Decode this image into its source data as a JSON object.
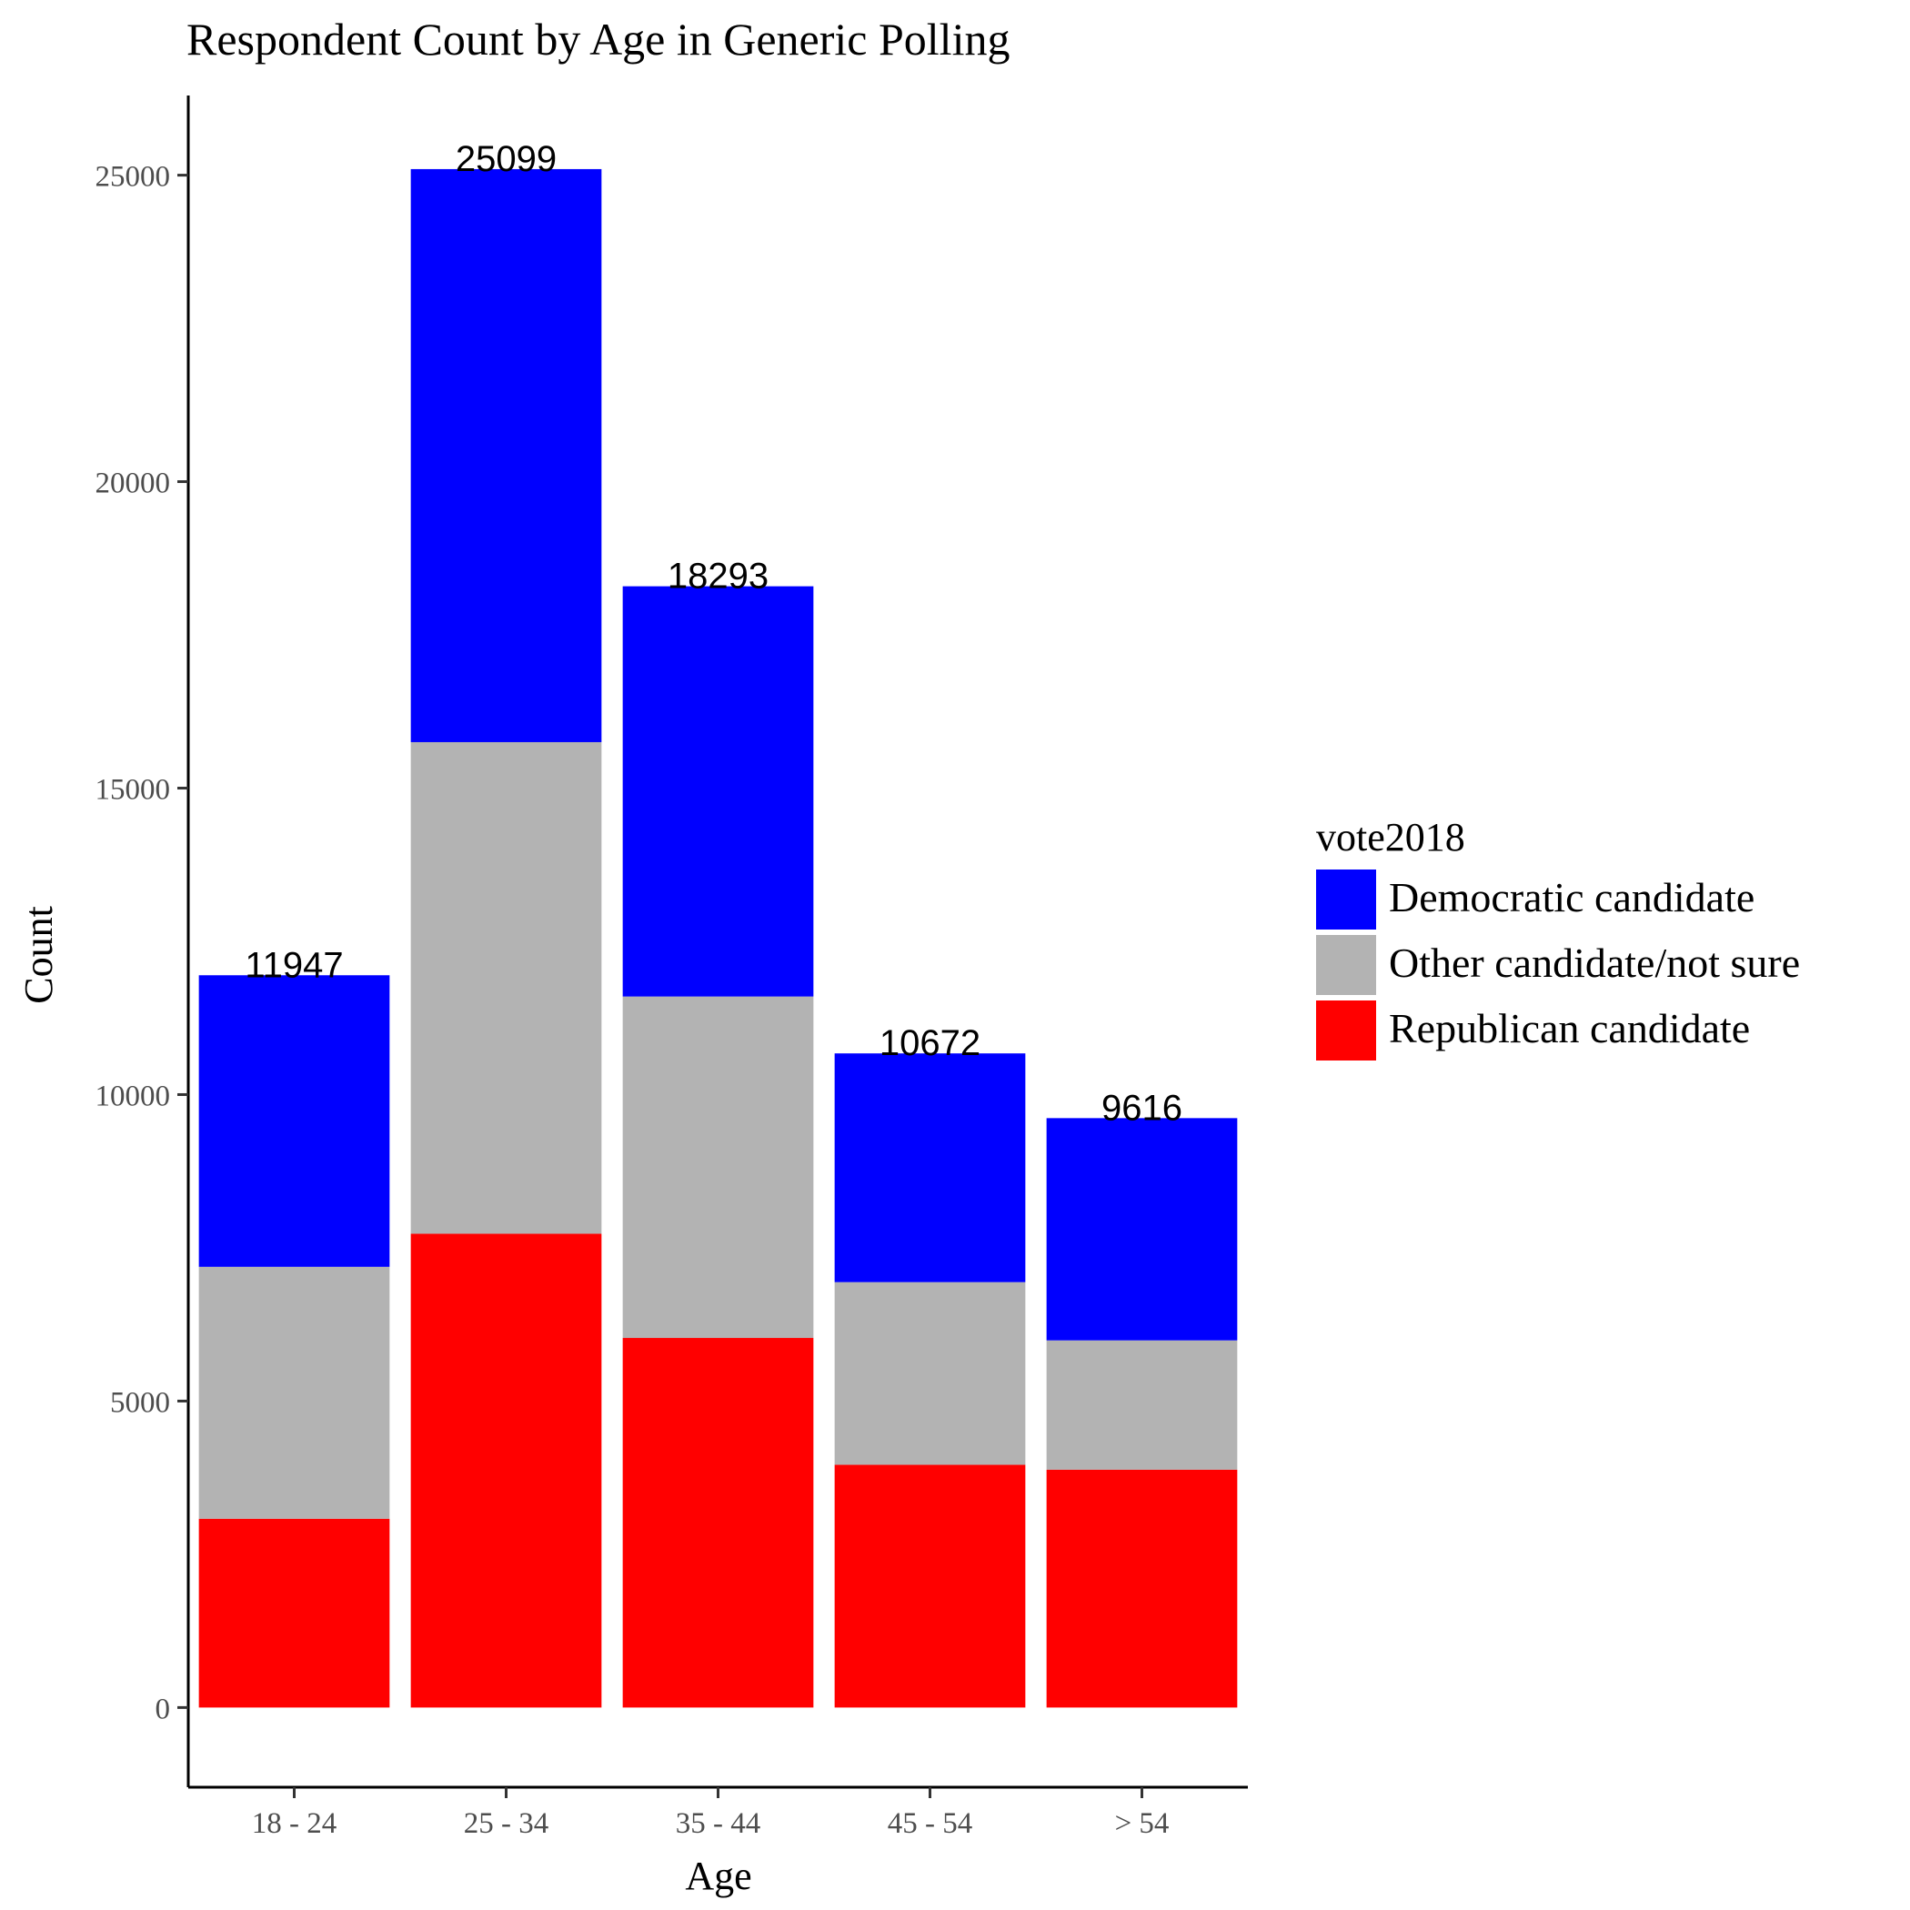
{
  "chart_data": {
    "type": "bar",
    "stacked": true,
    "title": "Respondent Count by Age in Generic Polling",
    "xlabel": "Age",
    "ylabel": "Count",
    "categories": [
      "18 - 24",
      "25 - 34",
      "35 - 44",
      "45 - 54",
      "> 54"
    ],
    "ylim": [
      -1300,
      26300
    ],
    "yticks": [
      0,
      5000,
      10000,
      15000,
      20000,
      25000
    ],
    "totals": [
      11947,
      25099,
      18293,
      10672,
      9616
    ],
    "legend": {
      "title": "vote2018",
      "position": "right"
    },
    "grid": false,
    "series": [
      {
        "name": "Republican candidate",
        "color": "#ff0000",
        "values": [
          3080,
          7730,
          6030,
          3960,
          3880
        ]
      },
      {
        "name": "Other candidate/not sure",
        "color": "#b3b3b3",
        "values": [
          4110,
          8020,
          5570,
          2980,
          2110
        ]
      },
      {
        "name": "Democratic candidate",
        "color": "#0000ff",
        "values": [
          4757,
          9349,
          6693,
          3732,
          3626
        ]
      }
    ],
    "legend_order": [
      "Democratic candidate",
      "Other candidate/not sure",
      "Republican candidate"
    ]
  }
}
